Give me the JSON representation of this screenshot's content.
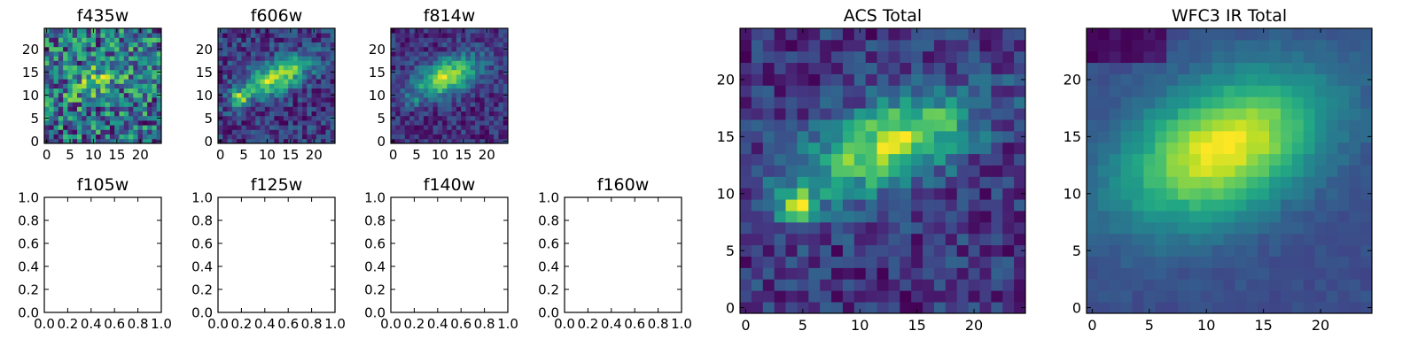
{
  "figure": {
    "background": "#ffffff",
    "colormap": "viridis"
  },
  "chart_data": [
    {
      "id": "f435w",
      "type": "heatmap",
      "title": "f435w",
      "shape": [
        25,
        25
      ],
      "xlim": [
        0,
        24
      ],
      "ylim": [
        0,
        24
      ],
      "xticks": [
        "0",
        "5",
        "10",
        "15",
        "20"
      ],
      "yticks": [
        "0",
        "5",
        "10",
        "15",
        "20"
      ],
      "description": "noisy image, bright yellow-green, weak extended source near center"
    },
    {
      "id": "f606w",
      "type": "heatmap",
      "title": "f606w",
      "shape": [
        25,
        25
      ],
      "xlim": [
        0,
        24
      ],
      "ylim": [
        0,
        24
      ],
      "xticks": [
        "0",
        "5",
        "10",
        "15",
        "20"
      ],
      "yticks": [
        "0",
        "5",
        "10",
        "15",
        "20"
      ],
      "description": "elongated source centered near (12, 14), secondary knot near (4, 9)"
    },
    {
      "id": "f814w",
      "type": "heatmap",
      "title": "f814w",
      "shape": [
        25,
        25
      ],
      "xlim": [
        0,
        24
      ],
      "ylim": [
        0,
        24
      ],
      "xticks": [
        "0",
        "5",
        "10",
        "15",
        "20"
      ],
      "yticks": [
        "0",
        "5",
        "10",
        "15",
        "20"
      ],
      "description": "bright source centered near (11, 14)"
    },
    {
      "id": "f105w",
      "type": "empty",
      "title": "f105w",
      "xlim": [
        0.0,
        1.0
      ],
      "ylim": [
        0.0,
        1.0
      ],
      "xticks": [
        "0.0",
        "0.2",
        "0.4",
        "0.6",
        "0.8",
        "1.0"
      ],
      "yticks": [
        "0.0",
        "0.2",
        "0.4",
        "0.6",
        "0.8",
        "1.0"
      ]
    },
    {
      "id": "f125w",
      "type": "empty",
      "title": "f125w",
      "xlim": [
        0.0,
        1.0
      ],
      "ylim": [
        0.0,
        1.0
      ],
      "xticks": [
        "0.0",
        "0.2",
        "0.4",
        "0.6",
        "0.8",
        "1.0"
      ],
      "yticks": [
        "0.0",
        "0.2",
        "0.4",
        "0.6",
        "0.8",
        "1.0"
      ]
    },
    {
      "id": "f140w",
      "type": "empty",
      "title": "f140w",
      "xlim": [
        0.0,
        1.0
      ],
      "ylim": [
        0.0,
        1.0
      ],
      "xticks": [
        "0.0",
        "0.2",
        "0.4",
        "0.6",
        "0.8",
        "1.0"
      ],
      "yticks": [
        "0.0",
        "0.2",
        "0.4",
        "0.6",
        "0.8",
        "1.0"
      ]
    },
    {
      "id": "f160w",
      "type": "empty",
      "title": "f160w",
      "xlim": [
        0.0,
        1.0
      ],
      "ylim": [
        0.0,
        1.0
      ],
      "xticks": [
        "0.0",
        "0.2",
        "0.4",
        "0.6",
        "0.8",
        "1.0"
      ],
      "yticks": [
        "0.0",
        "0.2",
        "0.4",
        "0.6",
        "0.8",
        "1.0"
      ]
    },
    {
      "id": "acs_total",
      "type": "heatmap",
      "title": "ACS Total",
      "shape": [
        25,
        25
      ],
      "xlim": [
        0,
        24
      ],
      "ylim": [
        0,
        24
      ],
      "xticks": [
        "0",
        "5",
        "10",
        "15",
        "20"
      ],
      "yticks": [
        "0",
        "5",
        "10",
        "15",
        "20"
      ],
      "description": "combined optical image; source peak near (12, 14), knot near (5, 9)"
    },
    {
      "id": "wfc3_ir_total",
      "type": "heatmap",
      "title": "WFC3 IR Total",
      "shape": [
        25,
        25
      ],
      "xlim": [
        0,
        24
      ],
      "ylim": [
        0,
        24
      ],
      "xticks": [
        "0",
        "5",
        "10",
        "15",
        "20"
      ],
      "yticks": [
        "0",
        "5",
        "10",
        "15",
        "20"
      ],
      "description": "smooth infrared image; broad source peak near (12, 14)"
    }
  ]
}
